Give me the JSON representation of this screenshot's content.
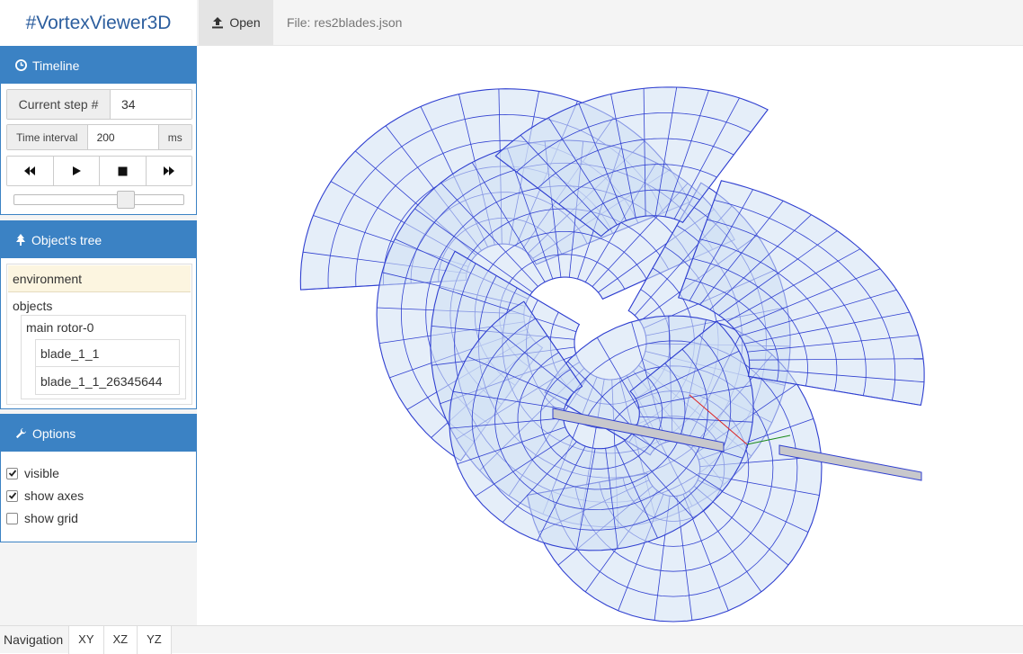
{
  "brand": "#VortexViewer3D",
  "toolbar": {
    "open_label": "Open",
    "file_label": "File: res2blades.json"
  },
  "timeline": {
    "title": "Timeline",
    "step_label": "Current step #",
    "step_value": "34",
    "interval_label": "Time interval",
    "interval_value": "200",
    "interval_unit": "ms",
    "slider_position": 0.67
  },
  "tree": {
    "title": "Object's tree",
    "environment": "environment",
    "objects": "objects",
    "rotor": "main rotor-0",
    "blades": [
      "blade_1_1",
      "blade_1_1_26345644"
    ]
  },
  "options": {
    "title": "Options",
    "items": [
      {
        "label": "visible",
        "checked": true
      },
      {
        "label": "show axes",
        "checked": true
      },
      {
        "label": "show grid",
        "checked": false
      }
    ]
  },
  "navigation": {
    "label": "Navigation",
    "buttons": [
      "XY",
      "XZ",
      "YZ"
    ]
  },
  "colors": {
    "accent": "#3b82c4",
    "wire": "#2f3fd0",
    "fill": "#cfe0f4",
    "selected": "#fcf5e0"
  },
  "icons": {
    "open": "upload-icon",
    "timeline": "clock-icon",
    "tree": "tree-icon",
    "options": "wrench-icon",
    "player": [
      "backward-icon",
      "play-icon",
      "stop-icon",
      "forward-icon"
    ]
  }
}
